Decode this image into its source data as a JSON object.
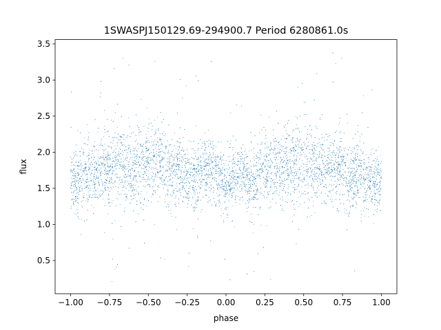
{
  "chart_data": {
    "type": "scatter",
    "title": "1SWASPJ150129.69-294900.7 Period 6280861.0s",
    "xlabel": "phase",
    "ylabel": "flux",
    "xlim": [
      -1.1,
      1.1
    ],
    "ylim": [
      0.04,
      3.56
    ],
    "xticks": [
      -1.0,
      -0.75,
      -0.5,
      -0.25,
      0.0,
      0.25,
      0.5,
      0.75,
      1.0
    ],
    "xtick_labels": [
      "−1.00",
      "−0.75",
      "−0.50",
      "−0.25",
      "0.00",
      "0.25",
      "0.50",
      "0.75",
      "1.00"
    ],
    "yticks": [
      0.5,
      1.0,
      1.5,
      2.0,
      2.5,
      3.0,
      3.5
    ],
    "ytick_labels": [
      "0.5",
      "1.0",
      "1.5",
      "2.0",
      "2.5",
      "3.0",
      "3.5"
    ],
    "grid": false,
    "legend": "none",
    "point_color": "#1f77b4",
    "series": [
      {
        "x": [
          -1.0,
          -0.95,
          -0.9,
          -0.85,
          -0.8,
          -0.75,
          -0.7,
          -0.65,
          -0.6,
          -0.55,
          -0.5,
          -0.45,
          -0.4,
          -0.35,
          -0.3,
          -0.25,
          -0.2,
          -0.15,
          -0.1,
          -0.05,
          0.0,
          0.05,
          0.1,
          0.15,
          0.2,
          0.25,
          0.3,
          0.35,
          0.4,
          0.45,
          0.5,
          0.55,
          0.6,
          0.65,
          0.7,
          0.75,
          0.8,
          0.85,
          0.9,
          0.95,
          1.0
        ],
        "y": [
          1.62,
          1.58,
          1.68,
          1.65,
          1.78,
          1.85,
          1.88,
          1.82,
          1.8,
          1.83,
          1.86,
          1.88,
          1.8,
          1.75,
          1.78,
          1.7,
          1.62,
          1.72,
          1.75,
          1.68,
          1.58,
          1.62,
          1.7,
          1.6,
          1.65,
          1.78,
          1.83,
          1.8,
          1.76,
          1.86,
          1.88,
          1.85,
          1.8,
          1.76,
          1.8,
          1.72,
          1.65,
          1.68,
          1.58,
          1.55,
          1.62
        ],
        "spread": [
          0.2,
          0.22,
          0.24,
          0.24,
          0.25,
          0.28,
          0.28,
          0.28,
          0.27,
          0.28,
          0.28,
          0.27,
          0.26,
          0.25,
          0.24,
          0.23,
          0.22,
          0.22,
          0.22,
          0.22,
          0.23,
          0.22,
          0.22,
          0.22,
          0.22,
          0.24,
          0.25,
          0.25,
          0.26,
          0.27,
          0.28,
          0.28,
          0.27,
          0.26,
          0.26,
          0.25,
          0.24,
          0.24,
          0.23,
          0.24,
          0.2
        ]
      }
    ]
  }
}
